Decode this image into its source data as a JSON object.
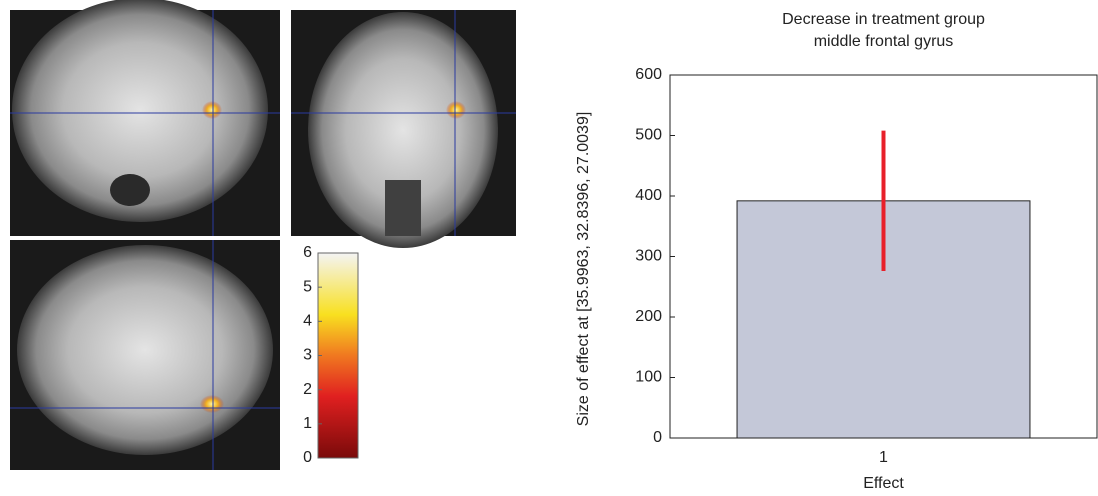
{
  "colorbar": {
    "lim": [
      0,
      6
    ],
    "ticks": [
      0,
      1,
      2,
      3,
      4,
      5,
      6
    ]
  },
  "chart_data": {
    "type": "bar",
    "title": [
      "Decrease in treatment group",
      "middle frontal gyrus"
    ],
    "xlabel": "Effect",
    "ylabel": "Size of effect at [35.9963, 32.8396, 27.0039]",
    "categories": [
      "1"
    ],
    "values": [
      392
    ],
    "errors": [
      116
    ],
    "color": "#c4c8d8",
    "error_color": "#e8202a",
    "ylim": [
      0,
      600
    ],
    "yticks": [
      0,
      100,
      200,
      300,
      400,
      500,
      600
    ]
  }
}
